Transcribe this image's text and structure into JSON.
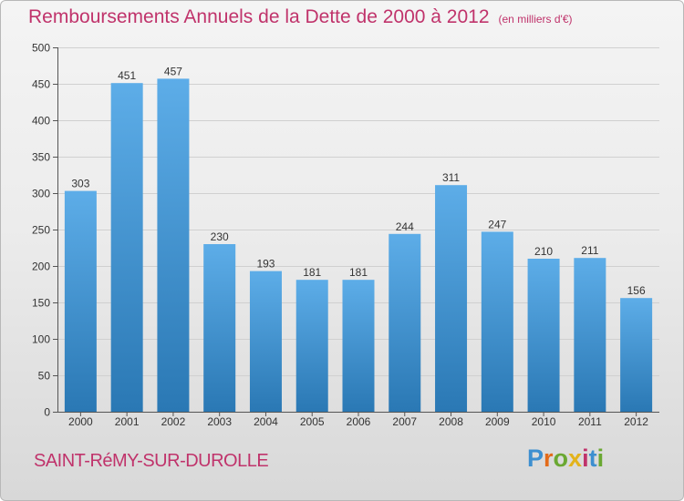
{
  "header": {
    "title": "Remboursements Annuels de la Dette de 2000 à 2012",
    "subtitle": "(en milliers d'€)"
  },
  "footer": {
    "city": "SAINT-RéMY-SUR-DUROLLE",
    "logo": {
      "text": "Proxiti",
      "letters": [
        "P",
        "r",
        "o",
        "x",
        "i",
        "t",
        "i"
      ],
      "colors": [
        "#3d8fd0",
        "#e36b1a",
        "#6aa832",
        "#e3b31b",
        "#c0336b",
        "#3d8fd0",
        "#6aa832"
      ]
    }
  },
  "colors": {
    "bar_light": "#5dade8",
    "bar_dark": "#2a78b4",
    "accent": "#c0336b",
    "grid": "#d0d0d0"
  },
  "chart_data": {
    "type": "bar",
    "title": "Remboursements Annuels de la Dette de 2000 à 2012",
    "subtitle": "(en milliers d'€)",
    "categories": [
      "2000",
      "2001",
      "2002",
      "2003",
      "2004",
      "2005",
      "2006",
      "2007",
      "2008",
      "2009",
      "2010",
      "2011",
      "2012"
    ],
    "values": [
      303,
      451,
      457,
      230,
      193,
      181,
      181,
      244,
      311,
      247,
      210,
      211,
      156
    ],
    "ylim": [
      0,
      500
    ],
    "yticks": [
      0,
      50,
      100,
      150,
      200,
      250,
      300,
      350,
      400,
      450,
      500
    ],
    "grid": true,
    "data_labels": true
  }
}
